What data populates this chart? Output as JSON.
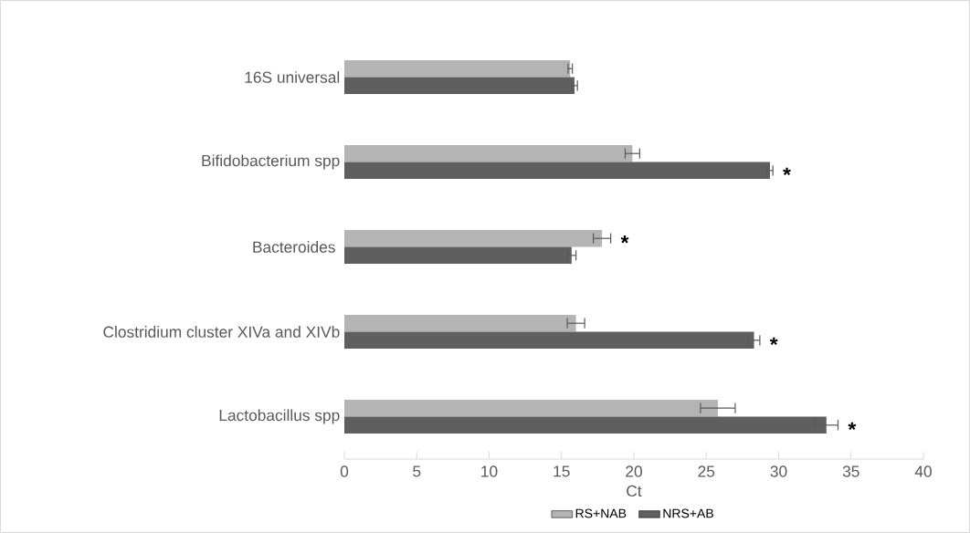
{
  "chart_data": {
    "type": "bar",
    "orientation": "horizontal",
    "xlabel": "Ct",
    "categories": [
      "16S universal",
      "Bifidobacterium spp",
      "Bacteroides ",
      "Clostridium cluster XIVa and XIVb",
      "Lactobacillus spp"
    ],
    "series": [
      {
        "name": "RS+NAB",
        "color": "#b4b4b4",
        "values": [
          15.6,
          19.9,
          17.8,
          16.0,
          25.8
        ],
        "errors": [
          0.15,
          0.5,
          0.6,
          0.6,
          1.2
        ]
      },
      {
        "name": "NRS+AB",
        "color": "#5f5f5f",
        "values": [
          15.9,
          29.4,
          15.7,
          28.3,
          33.3
        ],
        "errors": [
          0.2,
          0.2,
          0.3,
          0.4,
          0.8
        ]
      }
    ],
    "xlim": [
      0,
      40
    ],
    "xticks": [
      0,
      5,
      10,
      15,
      20,
      25,
      30,
      35,
      40
    ],
    "annotations": [
      {
        "text": "*",
        "x": 29.4,
        "y": "Bifidobacterium spp"
      },
      {
        "text": "*",
        "x": 17.8,
        "y": "Bacteroides "
      },
      {
        "text": "*",
        "x": 28.3,
        "y": "Clostridium cluster XIVa and XIVb"
      },
      {
        "text": "*",
        "x": 33.3,
        "y": "Lactobacillus spp"
      }
    ],
    "grid": false,
    "legend": "bottom"
  }
}
